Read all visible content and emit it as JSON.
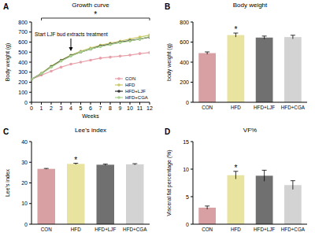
{
  "chart_data": [
    {
      "label": "A",
      "type": "line",
      "title": "Growth curve",
      "x_label": "Weeks",
      "y_label": "Body weight (g)",
      "x": [
        0,
        1,
        2,
        3,
        4,
        5,
        6,
        7,
        8,
        9,
        10,
        11,
        12
      ],
      "xlim": [
        0,
        12
      ],
      "xticks": [
        0,
        1,
        2,
        3,
        4,
        5,
        6,
        7,
        8,
        9,
        10,
        11,
        12
      ],
      "ylim": [
        0,
        800
      ],
      "yticks": [
        0,
        100,
        200,
        300,
        400,
        500,
        600,
        700,
        800
      ],
      "legend": "lower right",
      "marker": "circle",
      "series": [
        {
          "name": "CON",
          "color": "#e8a0aa",
          "values": [
            230,
            270,
            310,
            350,
            380,
            400,
            420,
            440,
            450,
            460,
            470,
            485,
            495
          ]
        },
        {
          "name": "HFD",
          "color": "#c9c96a",
          "values": [
            230,
            290,
            360,
            420,
            470,
            510,
            540,
            570,
            590,
            610,
            630,
            650,
            670
          ]
        },
        {
          "name": "HFD+LJF",
          "color": "#333333",
          "values": [
            230,
            285,
            355,
            415,
            465,
            500,
            530,
            560,
            580,
            600,
            615,
            630,
            650
          ]
        },
        {
          "name": "HFD+CGA",
          "color": "#a9d18e",
          "values": [
            230,
            285,
            350,
            410,
            460,
            500,
            530,
            555,
            575,
            595,
            610,
            630,
            655
          ]
        }
      ],
      "annotations": [
        {
          "text": "Start LJF bud extracts treatment",
          "x": 4
        },
        {
          "text": "*",
          "x": [
            1,
            12
          ]
        }
      ]
    },
    {
      "label": "B",
      "type": "bar",
      "title": "Body weight",
      "y_label": "body weight (g)",
      "categories": [
        "CON",
        "HFD",
        "HFD+LJF",
        "HFD+CGA"
      ],
      "values": [
        490,
        670,
        645,
        650
      ],
      "errors": [
        12,
        20,
        15,
        18
      ],
      "colors": [
        "#d9a0a4",
        "#e8e4a0",
        "#707070",
        "#d3d3d3"
      ],
      "ylim": [
        0,
        800
      ],
      "yticks": [
        0,
        200,
        400,
        600,
        800
      ],
      "annotations": [
        {
          "text": "*",
          "category": "HFD"
        }
      ]
    },
    {
      "label": "C",
      "type": "bar",
      "title": "Lee's index",
      "y_label": "Lee's index",
      "categories": [
        "CON",
        "HFD",
        "HFD+LJF",
        "HFD+CGA"
      ],
      "values": [
        26.8,
        29.2,
        28.8,
        29.0
      ],
      "errors": [
        0.2,
        0.3,
        0.3,
        0.3
      ],
      "colors": [
        "#d9a0a4",
        "#e8e4a0",
        "#707070",
        "#d3d3d3"
      ],
      "ylim": [
        0,
        40
      ],
      "yticks": [
        0,
        10,
        20,
        30,
        40
      ],
      "annotations": [
        {
          "text": "*",
          "category": "HFD"
        }
      ]
    },
    {
      "label": "D",
      "type": "bar",
      "title": "VF%",
      "y_label": "Visceral fat percentage (%)",
      "categories": [
        "CON",
        "HFD",
        "HFD+LJF",
        "HFD+CGA"
      ],
      "values": [
        3.0,
        8.9,
        8.8,
        7.1
      ],
      "errors": [
        0.3,
        0.7,
        1.0,
        0.8
      ],
      "colors": [
        "#d9a0a4",
        "#e8e4a0",
        "#707070",
        "#d3d3d3"
      ],
      "ylim": [
        0,
        15
      ],
      "yticks": [
        0,
        5,
        10,
        15
      ],
      "annotations": [
        {
          "text": "*",
          "category": "HFD"
        }
      ]
    }
  ]
}
